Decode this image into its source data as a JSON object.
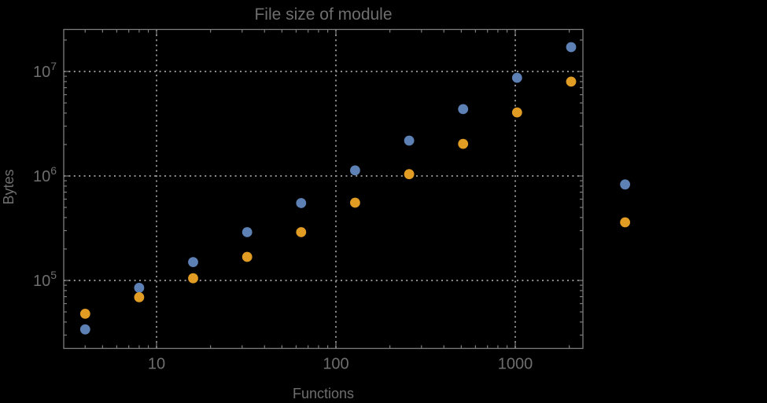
{
  "title": "File size of module",
  "colors": {
    "background": "#000000",
    "frame": "#7d7d7d",
    "grid": "#8e8e8e",
    "text": "#6e6e6e",
    "series_blue": "#5e81b5",
    "series_orange": "#e19c24"
  },
  "chart_data": {
    "type": "scatter",
    "title": "File size of module",
    "xlabel": "Functions",
    "ylabel": "Bytes",
    "x_scale": "log",
    "y_scale": "log",
    "grid": "dotted at major ticks, both axes",
    "legend": "none",
    "xlim": [
      3,
      2400
    ],
    "ylim": [
      22000,
      24000000
    ],
    "x": [
      4,
      8,
      16,
      32,
      64,
      128,
      256,
      512,
      1024,
      2048,
      4096
    ],
    "series": [
      {
        "name": "series-1-blue",
        "color": "#5e81b5",
        "values": [
          34000,
          85000,
          150000,
          290000,
          550000,
          1130000,
          2180000,
          4360000,
          8700000,
          17100000,
          830000
        ]
      },
      {
        "name": "series-2-orange",
        "color": "#e19c24",
        "values": [
          48000,
          69000,
          105000,
          168000,
          290000,
          555000,
          1040000,
          2030000,
          4060000,
          8000000,
          360000
        ]
      }
    ],
    "x_ticks": [
      {
        "value": 10,
        "label": "10"
      },
      {
        "value": 100,
        "label": "100"
      },
      {
        "value": 1000,
        "label": "1000"
      }
    ],
    "y_ticks": [
      {
        "value": 100000,
        "base": "10",
        "exp": "5"
      },
      {
        "value": 1000000,
        "base": "10",
        "exp": "6"
      },
      {
        "value": 10000000,
        "base": "10",
        "exp": "7"
      }
    ]
  }
}
